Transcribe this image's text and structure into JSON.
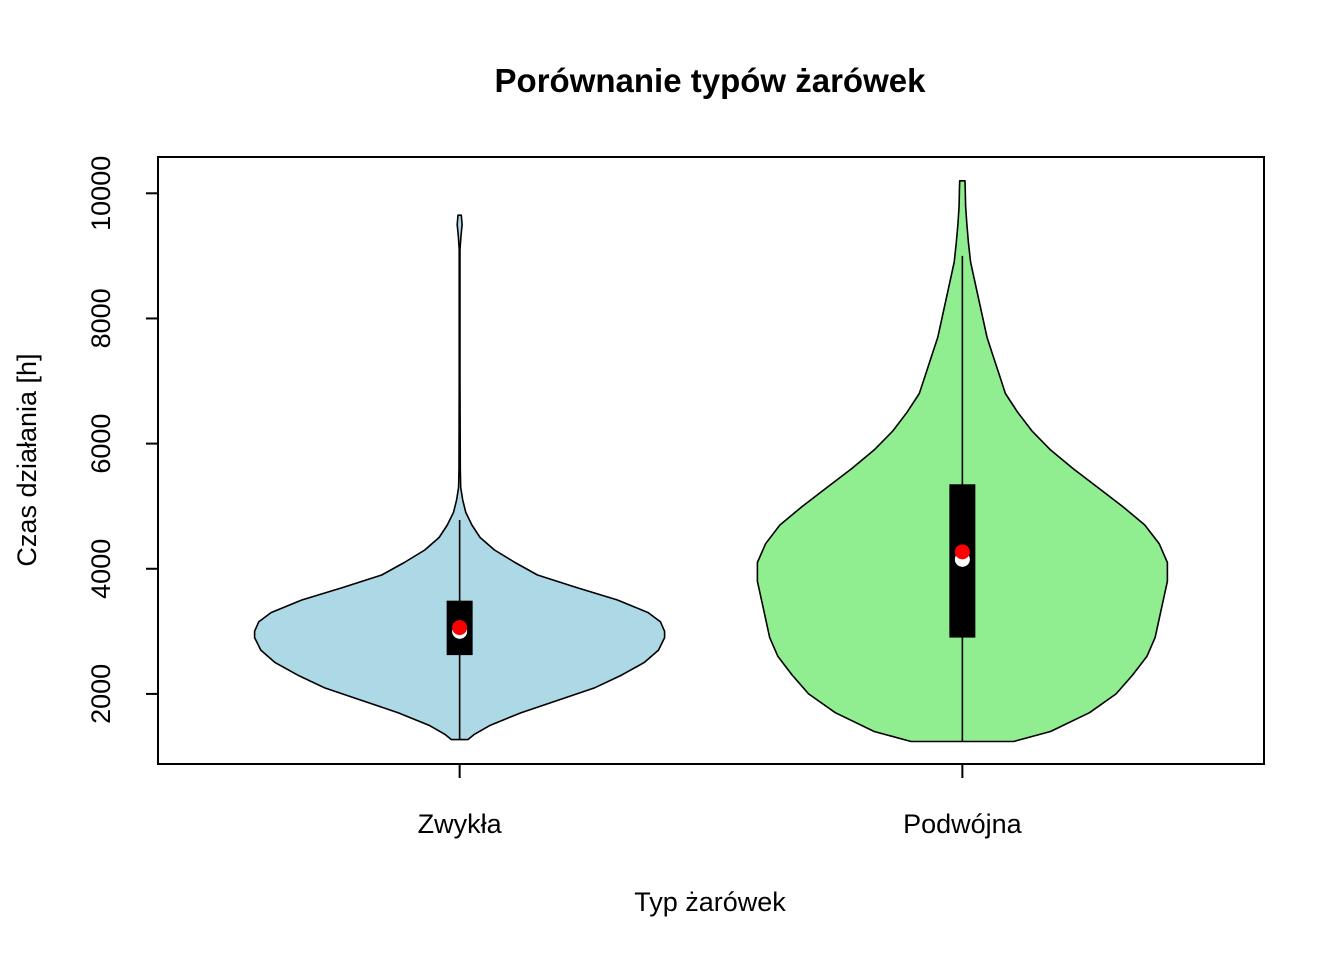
{
  "chart_data": {
    "type": "violin",
    "title": "Porównanie typów żarówek",
    "xlabel": "Typ żarówek",
    "ylabel": "Czas działania [h]",
    "ylim": [
      880,
      10580
    ],
    "yticks": [
      2000,
      4000,
      6000,
      8000,
      10000
    ],
    "yticklabels": [
      "2000",
      "4000",
      "6000",
      "8000",
      "10000"
    ],
    "categories": [
      "Zwykła",
      "Podwójna"
    ],
    "grid": false,
    "series": [
      {
        "category": "Zwykła",
        "color": "#add8e6",
        "min": 1270,
        "q1": 2620,
        "median": 3000,
        "mean": 3060,
        "q3": 3490,
        "whisker_low": 1270,
        "whisker_high": 4780,
        "max": 9650,
        "density": [
          [
            1270,
            0.04
          ],
          [
            1350,
            0.07
          ],
          [
            1500,
            0.15
          ],
          [
            1700,
            0.3
          ],
          [
            1900,
            0.48
          ],
          [
            2100,
            0.66
          ],
          [
            2300,
            0.79
          ],
          [
            2500,
            0.9
          ],
          [
            2700,
            0.97
          ],
          [
            2900,
            1.0
          ],
          [
            3000,
            1.0
          ],
          [
            3150,
            0.98
          ],
          [
            3300,
            0.92
          ],
          [
            3500,
            0.77
          ],
          [
            3700,
            0.57
          ],
          [
            3900,
            0.38
          ],
          [
            4100,
            0.27
          ],
          [
            4300,
            0.17
          ],
          [
            4500,
            0.1
          ],
          [
            4700,
            0.06
          ],
          [
            4900,
            0.03
          ],
          [
            5100,
            0.015
          ],
          [
            5300,
            0.005
          ],
          [
            5600,
            0.003
          ],
          [
            7000,
            0.002
          ],
          [
            9100,
            0.002
          ],
          [
            9300,
            0.006
          ],
          [
            9500,
            0.012
          ],
          [
            9650,
            0.008
          ]
        ]
      },
      {
        "category": "Podwójna",
        "color": "#90ee90",
        "min": 1240,
        "q1": 2900,
        "median": 4150,
        "mean": 4270,
        "q3": 5350,
        "whisker_low": 1240,
        "whisker_high": 9000,
        "max": 10200,
        "density": [
          [
            1240,
            0.25
          ],
          [
            1400,
            0.43
          ],
          [
            1700,
            0.62
          ],
          [
            2000,
            0.75
          ],
          [
            2300,
            0.83
          ],
          [
            2600,
            0.9
          ],
          [
            2900,
            0.94
          ],
          [
            3200,
            0.96
          ],
          [
            3500,
            0.98
          ],
          [
            3800,
            1.0
          ],
          [
            4100,
            1.0
          ],
          [
            4400,
            0.96
          ],
          [
            4700,
            0.89
          ],
          [
            5000,
            0.78
          ],
          [
            5300,
            0.66
          ],
          [
            5600,
            0.54
          ],
          [
            5900,
            0.43
          ],
          [
            6200,
            0.34
          ],
          [
            6500,
            0.27
          ],
          [
            6800,
            0.21
          ],
          [
            7100,
            0.18
          ],
          [
            7400,
            0.15
          ],
          [
            7700,
            0.12
          ],
          [
            8000,
            0.1
          ],
          [
            8300,
            0.08
          ],
          [
            8600,
            0.06
          ],
          [
            8900,
            0.04
          ],
          [
            9200,
            0.03
          ],
          [
            9500,
            0.022
          ],
          [
            9800,
            0.016
          ],
          [
            10100,
            0.014
          ],
          [
            10200,
            0.013
          ]
        ]
      }
    ]
  }
}
